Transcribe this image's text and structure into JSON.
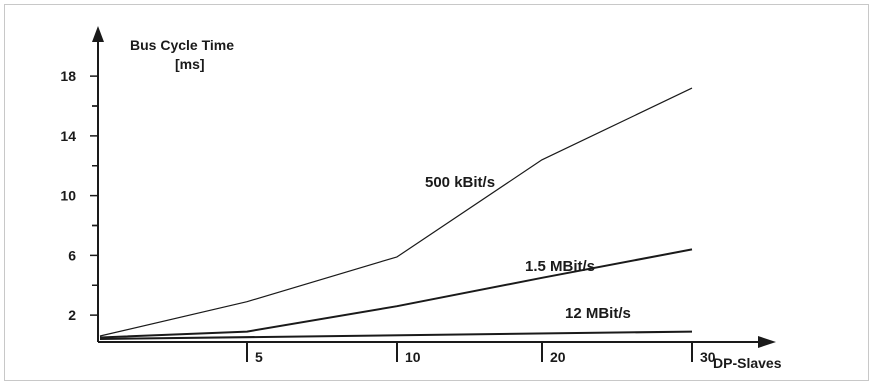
{
  "chart_data": {
    "type": "line",
    "ylabel": "Bus Cycle Time",
    "yunit": "[ms]",
    "xlabel": "DP-Slaves",
    "x_ticks": [
      {
        "label": "5",
        "value": 5
      },
      {
        "label": "10",
        "value": 10
      },
      {
        "label": "20",
        "value": 20
      },
      {
        "label": "30",
        "value": 30
      }
    ],
    "y_ticks": [
      2,
      6,
      10,
      14,
      18
    ],
    "ylim": [
      0,
      20
    ],
    "x_scale": "nonlinear (5, 10, 20, 30 as labeled ticks)",
    "grid": false,
    "series": [
      {
        "name": "500 kBit/s",
        "points": [
          [
            0,
            0.6
          ],
          [
            5,
            2.9
          ],
          [
            10,
            5.9
          ],
          [
            20,
            12.4
          ],
          [
            30,
            17.2
          ]
        ]
      },
      {
        "name": "1.5 MBit/s",
        "points": [
          [
            0,
            0.5
          ],
          [
            5,
            0.9
          ],
          [
            10,
            2.6
          ],
          [
            20,
            4.5
          ],
          [
            30,
            6.4
          ]
        ]
      },
      {
        "name": "12 MBit/s",
        "points": [
          [
            0,
            0.4
          ],
          [
            30,
            0.9
          ]
        ]
      }
    ]
  }
}
